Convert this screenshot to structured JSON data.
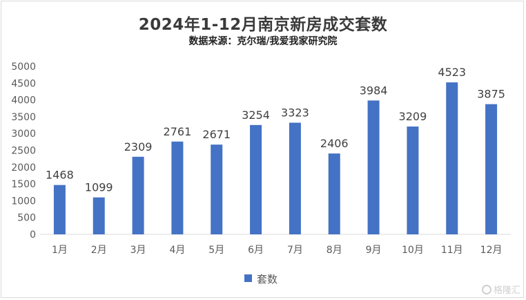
{
  "chart_data": {
    "type": "bar",
    "title": "2024年1-12月南京新房成交套数",
    "subtitle": "数据来源：克尔瑞/我爱我家研究院",
    "categories": [
      "1月",
      "2月",
      "3月",
      "4月",
      "5月",
      "6月",
      "7月",
      "8月",
      "9月",
      "10月",
      "11月",
      "12月"
    ],
    "series": [
      {
        "name": "套数",
        "values": [
          1468,
          1099,
          2309,
          2761,
          2671,
          3254,
          3323,
          2406,
          3984,
          3209,
          4523,
          3875
        ],
        "color": "#4472c4"
      }
    ],
    "ylim": [
      0,
      5000
    ],
    "yticks": [
      0,
      500,
      1000,
      1500,
      2000,
      2500,
      3000,
      3500,
      4000,
      4500,
      5000
    ],
    "grid": false,
    "data_labels": true,
    "legend_position": "bottom"
  },
  "watermark": {
    "text": "格隆汇",
    "icon": "gelonghui-logo-icon"
  }
}
